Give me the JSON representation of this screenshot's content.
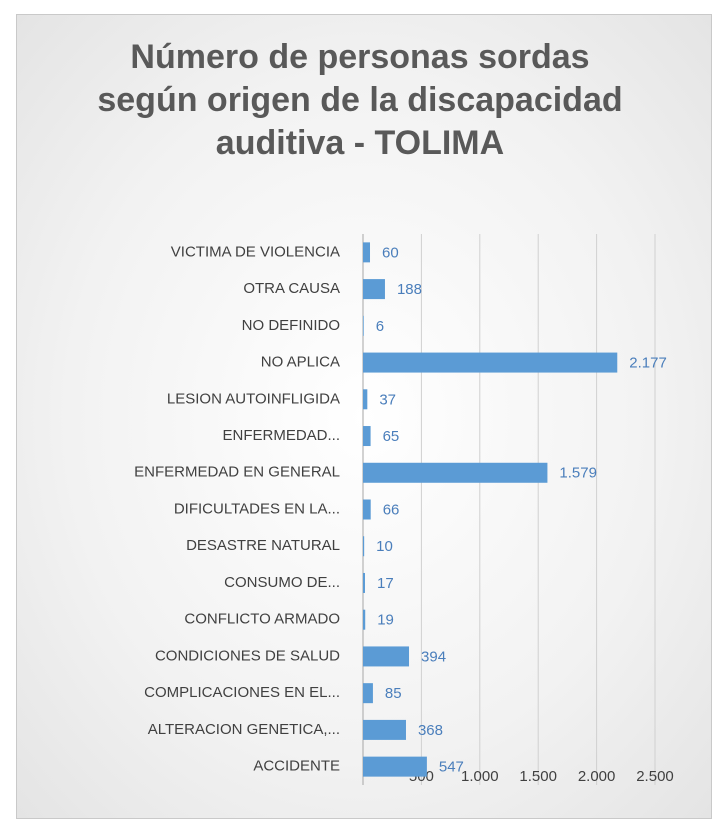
{
  "chart_data": {
    "type": "barh",
    "title": "Número de personas sordas según origen de la discapacidad auditiva - TOLIMA",
    "categories": [
      "VICTIMA DE VIOLENCIA",
      "OTRA CAUSA",
      "NO DEFINIDO",
      "NO APLICA",
      "LESION AUTOINFLIGIDA",
      "ENFERMEDAD...",
      "ENFERMEDAD EN GENERAL",
      "DIFICULTADES EN LA...",
      "DESASTRE NATURAL",
      "CONSUMO DE...",
      "CONFLICTO ARMADO",
      "CONDICIONES DE SALUD",
      "COMPLICACIONES EN EL...",
      "ALTERACION GENETICA,...",
      "ACCIDENTE"
    ],
    "values": [
      60,
      188,
      6,
      2177,
      37,
      65,
      1579,
      66,
      10,
      17,
      19,
      394,
      85,
      368,
      547
    ],
    "value_labels": [
      "60",
      "188",
      "6",
      "2.177",
      "37",
      "65",
      "1.579",
      "66",
      "10",
      "17",
      "19",
      "394",
      "85",
      "368",
      "547"
    ],
    "color": "#5b9bd5",
    "xlim": [
      0,
      2500
    ],
    "xticks": [
      500,
      {
        "value": 1000,
        "label": "1.000"
      },
      {
        "value": 1500,
        "label": "1.500"
      },
      {
        "value": 2000,
        "label": "2.000"
      },
      {
        "value": 2500,
        "label": "2.500"
      }
    ],
    "grid": true
  }
}
